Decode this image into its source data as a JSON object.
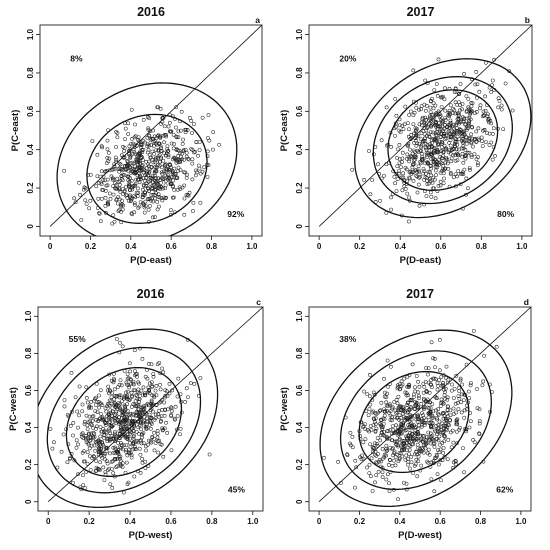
{
  "chart_data": [
    {
      "type": "scatter",
      "panel_letter": "a",
      "title": "2016",
      "xlabel": "P(D-east)",
      "ylabel": "P(C-east)",
      "xlim": [
        -0.05,
        1.05
      ],
      "ylim": [
        -0.05,
        1.05
      ],
      "xticks": [
        "0",
        "0.2",
        "0.4",
        "0.6",
        "0.8",
        "1.0"
      ],
      "yticks": [
        "0",
        "0.2",
        "0.4",
        "0.6",
        "0.8",
        "1.0"
      ],
      "reference_line": "y = x",
      "annotations": {
        "upper_left": "8%",
        "lower_right": "92%"
      },
      "cloud": {
        "n": 700,
        "mean_x": 0.48,
        "mean_y": 0.29,
        "sd_x": 0.14,
        "sd_y": 0.13,
        "corr": 0.3
      },
      "contours": [
        {
          "cx": 0.48,
          "cy": 0.3,
          "rx": 0.31,
          "ry": 0.27,
          "tilt_deg": 35
        },
        {
          "cx": 0.48,
          "cy": 0.33,
          "rx": 0.47,
          "ry": 0.39,
          "tilt_deg": 35
        }
      ]
    },
    {
      "type": "scatter",
      "panel_letter": "b",
      "title": "2017",
      "xlabel": "P(D-east)",
      "ylabel": "P(C-east)",
      "xlim": [
        -0.05,
        1.05
      ],
      "ylim": [
        -0.05,
        1.05
      ],
      "xticks": [
        "0",
        "0.2",
        "0.4",
        "0.6",
        "0.8",
        "1.0"
      ],
      "yticks": [
        "0",
        "0.2",
        "0.4",
        "0.6",
        "0.8",
        "1.0"
      ],
      "reference_line": "y = x",
      "annotations": {
        "upper_left": "20%",
        "lower_right": "80%"
      },
      "cloud": {
        "n": 700,
        "mean_x": 0.6,
        "mean_y": 0.45,
        "sd_x": 0.13,
        "sd_y": 0.14,
        "corr": 0.35
      },
      "contours": [
        {
          "cx": 0.61,
          "cy": 0.45,
          "rx": 0.29,
          "ry": 0.24,
          "tilt_deg": 40
        },
        {
          "cx": 0.61,
          "cy": 0.45,
          "rx": 0.37,
          "ry": 0.3,
          "tilt_deg": 40
        },
        {
          "cx": 0.61,
          "cy": 0.46,
          "rx": 0.48,
          "ry": 0.36,
          "tilt_deg": 40
        }
      ]
    },
    {
      "type": "scatter",
      "panel_letter": "c",
      "title": "2016",
      "xlabel": "P(D-west)",
      "ylabel": "P(C-west)",
      "xlim": [
        -0.05,
        1.05
      ],
      "ylim": [
        -0.05,
        1.05
      ],
      "xticks": [
        "0",
        "0.2",
        "0.4",
        "0.6",
        "0.8",
        "1.0"
      ],
      "yticks": [
        "0",
        "0.2",
        "0.4",
        "0.6",
        "0.8",
        "1.0"
      ],
      "reference_line": "y = x",
      "annotations": {
        "upper_left": "55%",
        "lower_right": "45%"
      },
      "cloud": {
        "n": 750,
        "mean_x": 0.37,
        "mean_y": 0.42,
        "sd_x": 0.13,
        "sd_y": 0.15,
        "corr": 0.35
      },
      "contours": [
        {
          "cx": 0.37,
          "cy": 0.43,
          "rx": 0.32,
          "ry": 0.25,
          "tilt_deg": 50
        },
        {
          "cx": 0.37,
          "cy": 0.44,
          "rx": 0.43,
          "ry": 0.33,
          "tilt_deg": 50
        },
        {
          "cx": 0.37,
          "cy": 0.45,
          "rx": 0.53,
          "ry": 0.4,
          "tilt_deg": 50
        }
      ]
    },
    {
      "type": "scatter",
      "panel_letter": "d",
      "title": "2017",
      "xlabel": "P(D-west)",
      "ylabel": "P(C-west)",
      "xlim": [
        -0.05,
        1.05
      ],
      "ylim": [
        -0.05,
        1.05
      ],
      "xticks": [
        "0",
        "0.2",
        "0.4",
        "0.6",
        "0.8",
        "1.0"
      ],
      "yticks": [
        "0",
        "0.2",
        "0.4",
        "0.6",
        "0.8",
        "1.0"
      ],
      "reference_line": "y = x",
      "annotations": {
        "upper_left": "38%",
        "lower_right": "62%"
      },
      "cloud": {
        "n": 750,
        "mean_x": 0.47,
        "mean_y": 0.42,
        "sd_x": 0.14,
        "sd_y": 0.15,
        "corr": 0.35
      },
      "contours": [
        {
          "cx": 0.47,
          "cy": 0.43,
          "rx": 0.3,
          "ry": 0.24,
          "tilt_deg": 45
        },
        {
          "cx": 0.48,
          "cy": 0.44,
          "rx": 0.42,
          "ry": 0.32,
          "tilt_deg": 45
        },
        {
          "cx": 0.48,
          "cy": 0.45,
          "rx": 0.54,
          "ry": 0.4,
          "tilt_deg": 45
        }
      ]
    }
  ]
}
